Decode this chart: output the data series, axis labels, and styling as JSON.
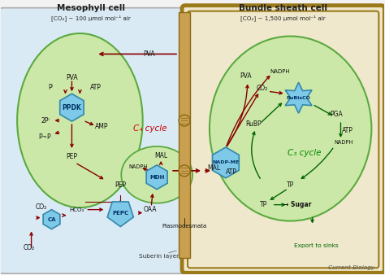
{
  "title_left": "Mesophyll cell",
  "title_right": "Bundle sheath cell",
  "co2_conc_left": "[CO₂] ~ 100 μmol mol⁻¹ air",
  "co2_conc_right": "[CO₂] ~ 1,500 μmol mol⁻¹ air",
  "bg_color": "#f2f2f2",
  "outer_left_box_color": "#daeaf5",
  "outer_right_box_facecolor": "#f0e8cc",
  "outer_right_border_color": "#9B7A1A",
  "chloroplast_color": "#cce8a8",
  "chloroplast_border": "#5aaa40",
  "enzyme_fc": "#7ec8e8",
  "enzyme_ec": "#3388aa",
  "red_color": "#880000",
  "green_color": "#006600",
  "label_color": "#111111",
  "c4_color": "#cc0000",
  "c3_color": "#008800",
  "wall_color": "#c8a050",
  "wall_border": "#8B6914",
  "current_biology": "Current Biology",
  "plasmodesmata": "Plasmodesmata",
  "suberin": "Suberin layer",
  "export_sinks": "Export to sinks"
}
